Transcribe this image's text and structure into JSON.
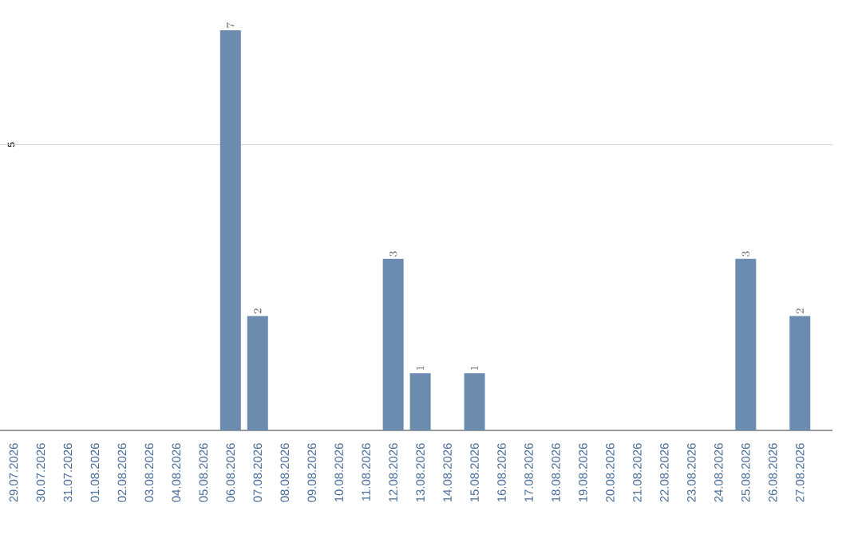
{
  "chart_data": {
    "type": "bar",
    "categories": [
      "29.07.2026",
      "30.07.2026",
      "31.07.2026",
      "01.08.2026",
      "02.08.2026",
      "03.08.2026",
      "04.08.2026",
      "05.08.2026",
      "06.08.2026",
      "07.08.2026",
      "08.08.2026",
      "09.08.2026",
      "10.08.2026",
      "11.08.2026",
      "12.08.2026",
      "13.08.2026",
      "14.08.2026",
      "15.08.2026",
      "16.08.2026",
      "17.08.2026",
      "18.08.2026",
      "19.08.2026",
      "20.08.2026",
      "21.08.2026",
      "22.08.2026",
      "23.08.2026",
      "24.08.2026",
      "25.08.2026",
      "26.08.2026",
      "27.08.2026"
    ],
    "values": [
      null,
      null,
      null,
      null,
      null,
      null,
      null,
      null,
      7,
      2,
      null,
      null,
      null,
      null,
      3,
      1,
      null,
      1,
      null,
      null,
      null,
      null,
      null,
      null,
      null,
      null,
      null,
      3,
      null,
      2
    ],
    "color": "#6b8cae",
    "ylim": [
      0,
      7
    ],
    "ref_lines": [
      {
        "axis": "y",
        "value": 5,
        "label": "5",
        "color": "#c8c8c8"
      }
    ],
    "data_labels": true
  }
}
